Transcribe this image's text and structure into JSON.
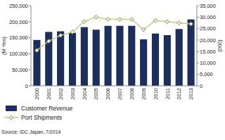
{
  "chart_data": {
    "type": "bar",
    "categories": [
      "2000",
      "2001",
      "2002",
      "2003",
      "2004",
      "2005",
      "2006",
      "2007",
      "2008",
      "2009",
      "2010",
      "2011",
      "2012",
      "2013"
    ],
    "series": [
      {
        "name": "Customer Revenue",
        "type": "bar",
        "color": "#1c2f5c",
        "values": [
          143000,
          168000,
          170000,
          165000,
          183000,
          175000,
          187000,
          187000,
          187000,
          145000,
          163000,
          158000,
          177000,
          207000
        ]
      },
      {
        "name": "Port Shipments",
        "type": "line",
        "axis": "y2",
        "color": "#c8c890",
        "marker": "diamond",
        "values": [
          15500,
          19500,
          22000,
          23500,
          28000,
          30000,
          29000,
          29000,
          29000,
          24500,
          28500,
          28000,
          27500,
          27000
        ]
      }
    ],
    "y_label": "(M Yen)",
    "y2_label": "(000)",
    "ylim": [
      0,
      250000
    ],
    "yticks": [
      0,
      {
        "value": 50000,
        "label": "50,000"
      },
      {
        "value": 100000,
        "label": "100,000"
      },
      {
        "value": 150000,
        "label": "150,000"
      },
      {
        "value": 200000,
        "label": "200,000"
      },
      {
        "value": 250000,
        "label": "250,000"
      }
    ],
    "y2lim": [
      0,
      35000
    ],
    "y2ticks": [
      0,
      {
        "value": 5000,
        "label": "5,000"
      },
      {
        "value": 10000,
        "label": "10,000"
      },
      {
        "value": 15000,
        "label": "15,000"
      },
      {
        "value": 20000,
        "label": "20,000"
      },
      {
        "value": 25000,
        "label": "25,000"
      },
      {
        "value": 30000,
        "label": "30,000"
      },
      {
        "value": 35000,
        "label": "35,000"
      }
    ],
    "grid": false,
    "legend": "bottom-left",
    "source": "Source: IDC Japan, 7/2014"
  }
}
